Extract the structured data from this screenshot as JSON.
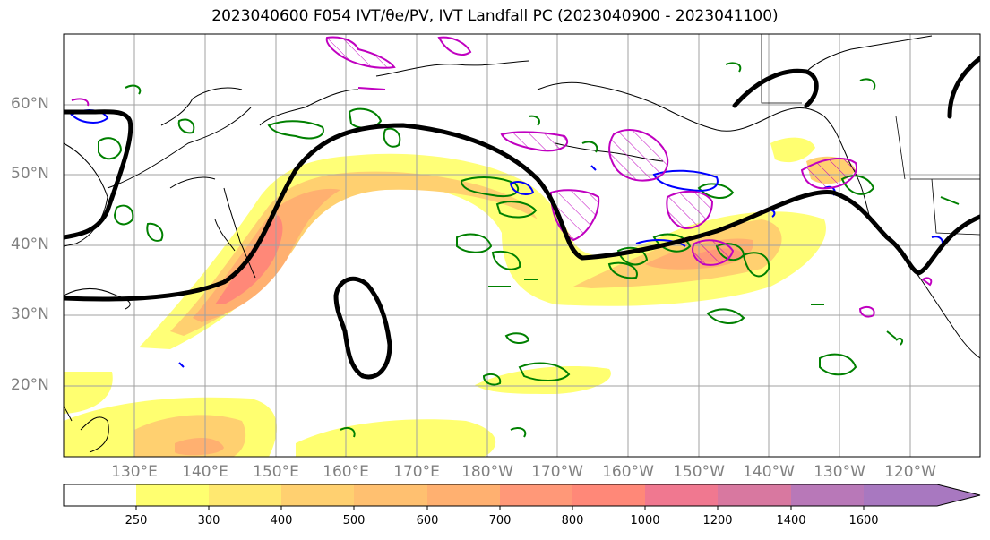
{
  "title": "2023040600 F054 IVT/θe/PV, IVT Landfall PC (2023040900 - 2023041100)",
  "lat_labels": [
    "60°N",
    "50°N",
    "40°N",
    "30°N",
    "20°N"
  ],
  "lon_labels": [
    "130°E",
    "140°E",
    "150°E",
    "160°E",
    "170°E",
    "180°W",
    "170°W",
    "160°W",
    "150°W",
    "140°W",
    "130°W",
    "120°W"
  ],
  "colorbar": {
    "levels": [
      "250",
      "300",
      "400",
      "500",
      "600",
      "700",
      "800",
      "1000",
      "1200",
      "1400",
      "1600"
    ],
    "colors": [
      "#ffffff",
      "#ffff70",
      "#ffe870",
      "#ffd070",
      "#ffc070",
      "#ffb070",
      "#ff9878",
      "#ff8878",
      "#f07890",
      "#d878a0",
      "#b878b8",
      "#a878c0"
    ]
  },
  "legend_colors": {
    "theta_e_contour": "#008000",
    "pv_contour": "#0000ff",
    "landfall_pc_contour": "#c000c0",
    "ivt_500_contour": "#000000"
  },
  "map_extent": {
    "lon_west": 120,
    "lon_east": 245,
    "lat_south": 10,
    "lat_north": 70
  }
}
